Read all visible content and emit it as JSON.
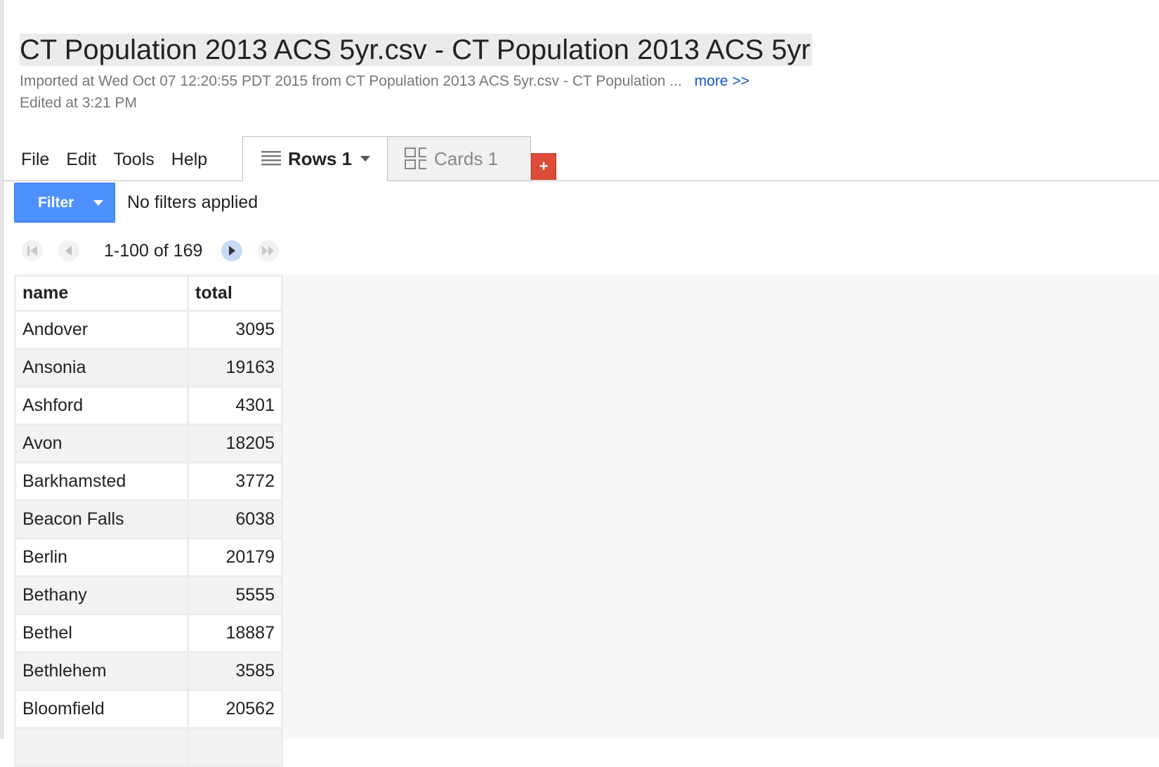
{
  "header": {
    "title": "CT Population 2013 ACS 5yr.csv - CT Population 2013 ACS 5yr",
    "imported": "Imported at Wed Oct 07 12:20:55 PDT 2015 from CT Population 2013 ACS 5yr.csv - CT Population ...",
    "more_link": "more >>",
    "edited": "Edited at 3:21 PM"
  },
  "menu": {
    "file": "File",
    "edit": "Edit",
    "tools": "Tools",
    "help": "Help"
  },
  "tabs": {
    "rows_label": "Rows 1",
    "cards_label": "Cards 1",
    "add_label": "+"
  },
  "filter": {
    "button_label": "Filter",
    "status": "No filters applied"
  },
  "pager": {
    "range": "1-100 of 169"
  },
  "table": {
    "columns": [
      "name",
      "total"
    ],
    "rows": [
      {
        "name": "Andover",
        "total": "3095"
      },
      {
        "name": "Ansonia",
        "total": "19163"
      },
      {
        "name": "Ashford",
        "total": "4301"
      },
      {
        "name": "Avon",
        "total": "18205"
      },
      {
        "name": "Barkhamsted",
        "total": "3772"
      },
      {
        "name": "Beacon Falls",
        "total": "6038"
      },
      {
        "name": "Berlin",
        "total": "20179"
      },
      {
        "name": "Bethany",
        "total": "5555"
      },
      {
        "name": "Bethel",
        "total": "18887"
      },
      {
        "name": "Bethlehem",
        "total": "3585"
      },
      {
        "name": "Bloomfield",
        "total": "20562"
      }
    ]
  },
  "colors": {
    "filter_blue": "#4d90fe",
    "add_red": "#dd4b39",
    "link_blue": "#1155cc"
  }
}
